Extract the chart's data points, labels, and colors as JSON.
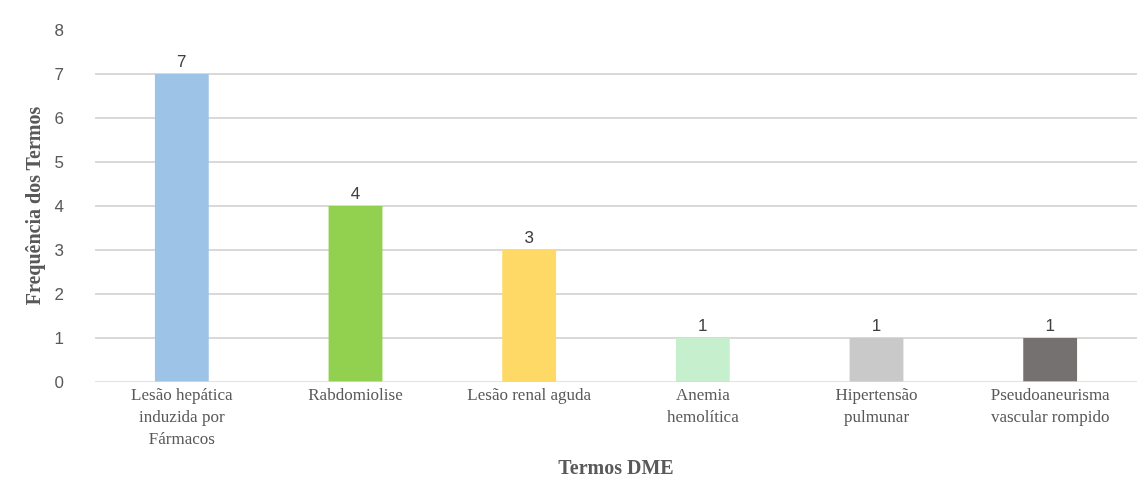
{
  "chart_data": {
    "type": "bar",
    "xlabel": "Termos DME",
    "ylabel": "Frequência dos Termos",
    "categories": [
      "Lesão hepática\ninduzida por\nFármacos",
      "Rabdomiolise",
      "Lesão renal aguda",
      "Anemia\nhemolítica",
      "Hipertensão\npulmunar",
      "Pseudoaneurisma\nvascular rompido"
    ],
    "values": [
      7,
      4,
      3,
      1,
      1,
      1
    ],
    "colors": [
      "#9dc3e6",
      "#92d050",
      "#ffd966",
      "#c6efce",
      "#c9c9c9",
      "#767171"
    ],
    "ylim": [
      0,
      8
    ],
    "yticks": [
      0,
      1,
      2,
      3,
      4,
      5,
      6,
      7,
      8
    ],
    "grid": "y",
    "data_labels": true
  }
}
